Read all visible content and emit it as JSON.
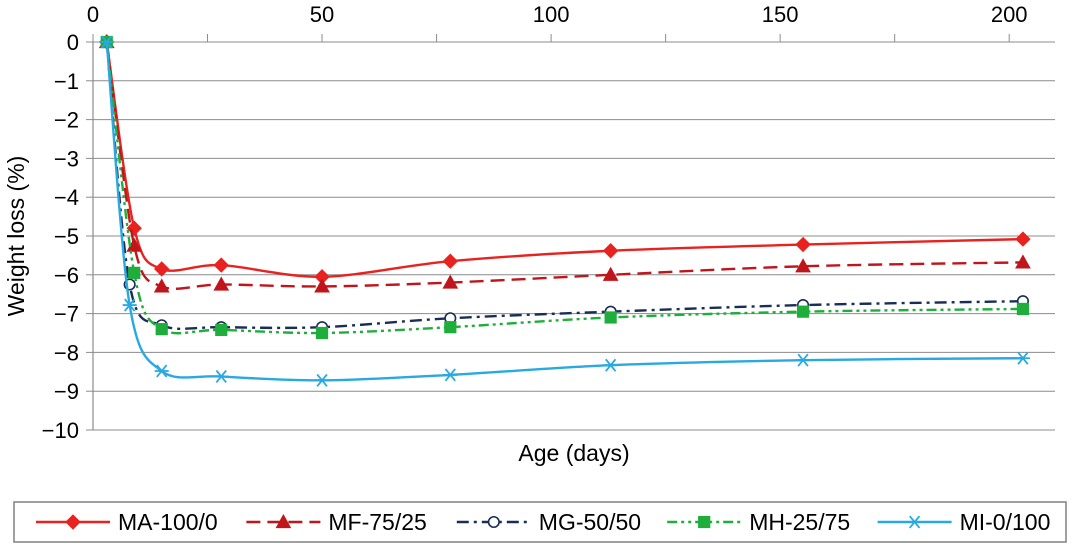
{
  "chart_data": {
    "type": "line",
    "title": "",
    "xlabel": "Age (days)",
    "ylabel": "Weight loss (%)",
    "xlim": [
      0,
      210
    ],
    "ylim": [
      -10,
      0
    ],
    "x_ticks": [
      0,
      50,
      100,
      150,
      200
    ],
    "x_tick_labels": [
      "0",
      "50",
      "100",
      "150",
      "200"
    ],
    "x_axis_position": "top",
    "y_ticks": [
      0,
      -1,
      -2,
      -3,
      -4,
      -5,
      -6,
      -7,
      -8,
      -9,
      -10
    ],
    "y_tick_labels": [
      "0",
      "−1",
      "−2",
      "−3",
      "−4",
      "−5",
      "−6",
      "−7",
      "−8",
      "−9",
      "−10"
    ],
    "grid": "horizontal",
    "legend_position": "bottom",
    "series": [
      {
        "name": "MA-100/0",
        "color": "#e8231f",
        "dash": "solid",
        "marker": "diamond",
        "x": [
          3,
          9,
          15,
          28,
          50,
          78,
          113,
          155,
          203
        ],
        "y": [
          0,
          -4.8,
          -5.85,
          -5.75,
          -6.05,
          -5.65,
          -5.38,
          -5.22,
          -5.08
        ]
      },
      {
        "name": "MF-75/25",
        "color": "#c0161b",
        "dash": "long-dash",
        "marker": "triangle",
        "x": [
          3,
          9,
          15,
          28,
          50,
          78,
          113,
          155,
          203
        ],
        "y": [
          0,
          -5.25,
          -6.3,
          -6.25,
          -6.3,
          -6.2,
          -6.0,
          -5.78,
          -5.68
        ]
      },
      {
        "name": "MG-50/50",
        "color": "#1a2e55",
        "dash": "dash-dot",
        "marker": "open-circle",
        "x": [
          3,
          8,
          15,
          28,
          50,
          78,
          113,
          155,
          203
        ],
        "y": [
          0,
          -6.25,
          -7.3,
          -7.35,
          -7.35,
          -7.12,
          -6.95,
          -6.78,
          -6.68
        ]
      },
      {
        "name": "MH-25/75",
        "color": "#1fae3b",
        "dash": "dash-dot-dot",
        "marker": "square",
        "x": [
          3,
          9,
          15,
          28,
          50,
          78,
          113,
          155,
          203
        ],
        "y": [
          0,
          -5.95,
          -7.4,
          -7.42,
          -7.5,
          -7.35,
          -7.1,
          -6.95,
          -6.88
        ]
      },
      {
        "name": "MI-0/100",
        "color": "#29a9e1",
        "dash": "solid",
        "marker": "asterisk",
        "x": [
          3,
          8,
          15,
          28,
          50,
          78,
          113,
          155,
          203
        ],
        "y": [
          0,
          -6.78,
          -8.48,
          -8.62,
          -8.72,
          -8.58,
          -8.33,
          -8.2,
          -8.15
        ]
      }
    ]
  }
}
